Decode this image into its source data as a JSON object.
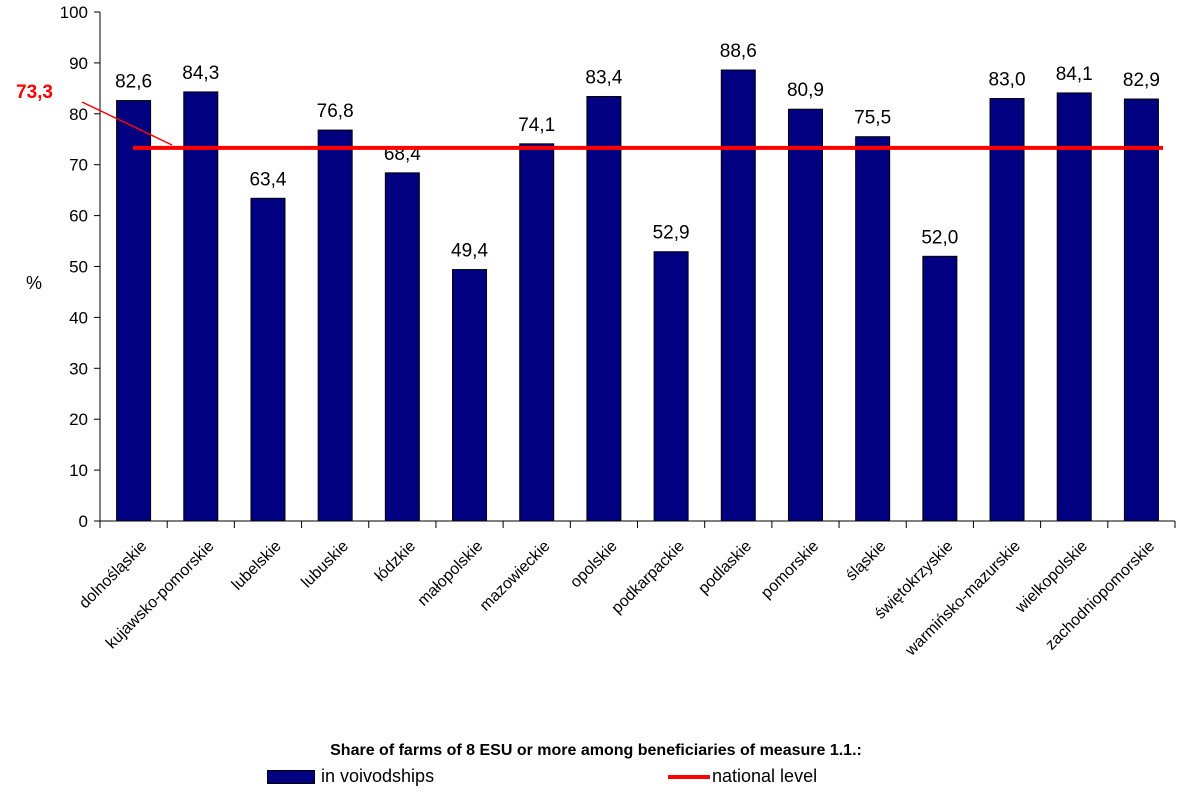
{
  "chart_data": {
    "type": "bar",
    "title": "Share of farms of 8 ESU or more among beneficiaries of measure 1.1.:",
    "ylabel": "%",
    "xlabel": "",
    "ylim": [
      0,
      100
    ],
    "yticks": [
      0,
      10,
      20,
      30,
      40,
      50,
      60,
      70,
      80,
      90,
      100
    ],
    "grid": false,
    "categories": [
      "dolnośląskie",
      "kujawsko-pomorskie",
      "lubelskie",
      "lubuskie",
      "łódzkie",
      "małopolskie",
      "mazowieckie",
      "opolskie",
      "podkarpackie",
      "podlaskie",
      "pomorskie",
      "śląskie",
      "świętokrzyskie",
      "warmińsko-mazurskie",
      "wielkopolskie",
      "zachodniopomorskie"
    ],
    "series": [
      {
        "name": "in voivodships",
        "values": [
          82.6,
          84.3,
          63.4,
          76.8,
          68.4,
          49.4,
          74.1,
          83.4,
          52.9,
          88.6,
          80.9,
          75.5,
          52.0,
          83.0,
          84.1,
          82.9
        ],
        "labels": [
          "82,6",
          "84,3",
          "63,4",
          "76,8",
          "68,4",
          "49,4",
          "74,1",
          "83,4",
          "52,9",
          "88,6",
          "80,9",
          "75,5",
          "52,0",
          "83,0",
          "84,1",
          "82,9"
        ]
      }
    ],
    "national_level": {
      "name": "national level",
      "value": 73.3,
      "label": "73,3"
    },
    "legend_position": "bottom",
    "colors": {
      "bars": "#000080",
      "national_line": "#ff0000"
    }
  }
}
